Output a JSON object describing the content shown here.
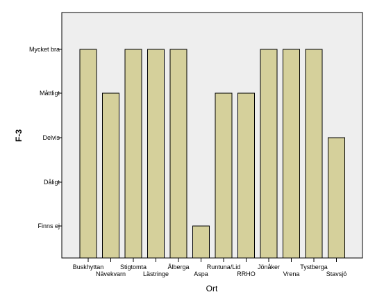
{
  "chart_data": {
    "type": "bar",
    "title": "",
    "xlabel": "Ort",
    "ylabel": "F-3",
    "y_levels": [
      "Finns ej",
      "Dåligt",
      "Delvis",
      "Måttligt",
      "Mycket bra"
    ],
    "categories": [
      "Buskhyttan",
      "Nävekvarn",
      "Stigtomta",
      "Lästringe",
      "Ålberga",
      "Aspa",
      "Runtuna/Lid",
      "RRHO",
      "Jönåker",
      "Vrena",
      "Tystberga",
      "Stavsjö"
    ],
    "values": [
      "Mycket bra",
      "Måttligt",
      "Mycket bra",
      "Mycket bra",
      "Mycket bra",
      "Finns ej",
      "Måttligt",
      "Måttligt",
      "Mycket bra",
      "Mycket bra",
      "Mycket bra",
      "Delvis"
    ],
    "grid": false,
    "colors": {
      "plot_background": "#eeeeee",
      "bar_fill": "#d5d09b",
      "bar_stroke": "#000000"
    }
  }
}
